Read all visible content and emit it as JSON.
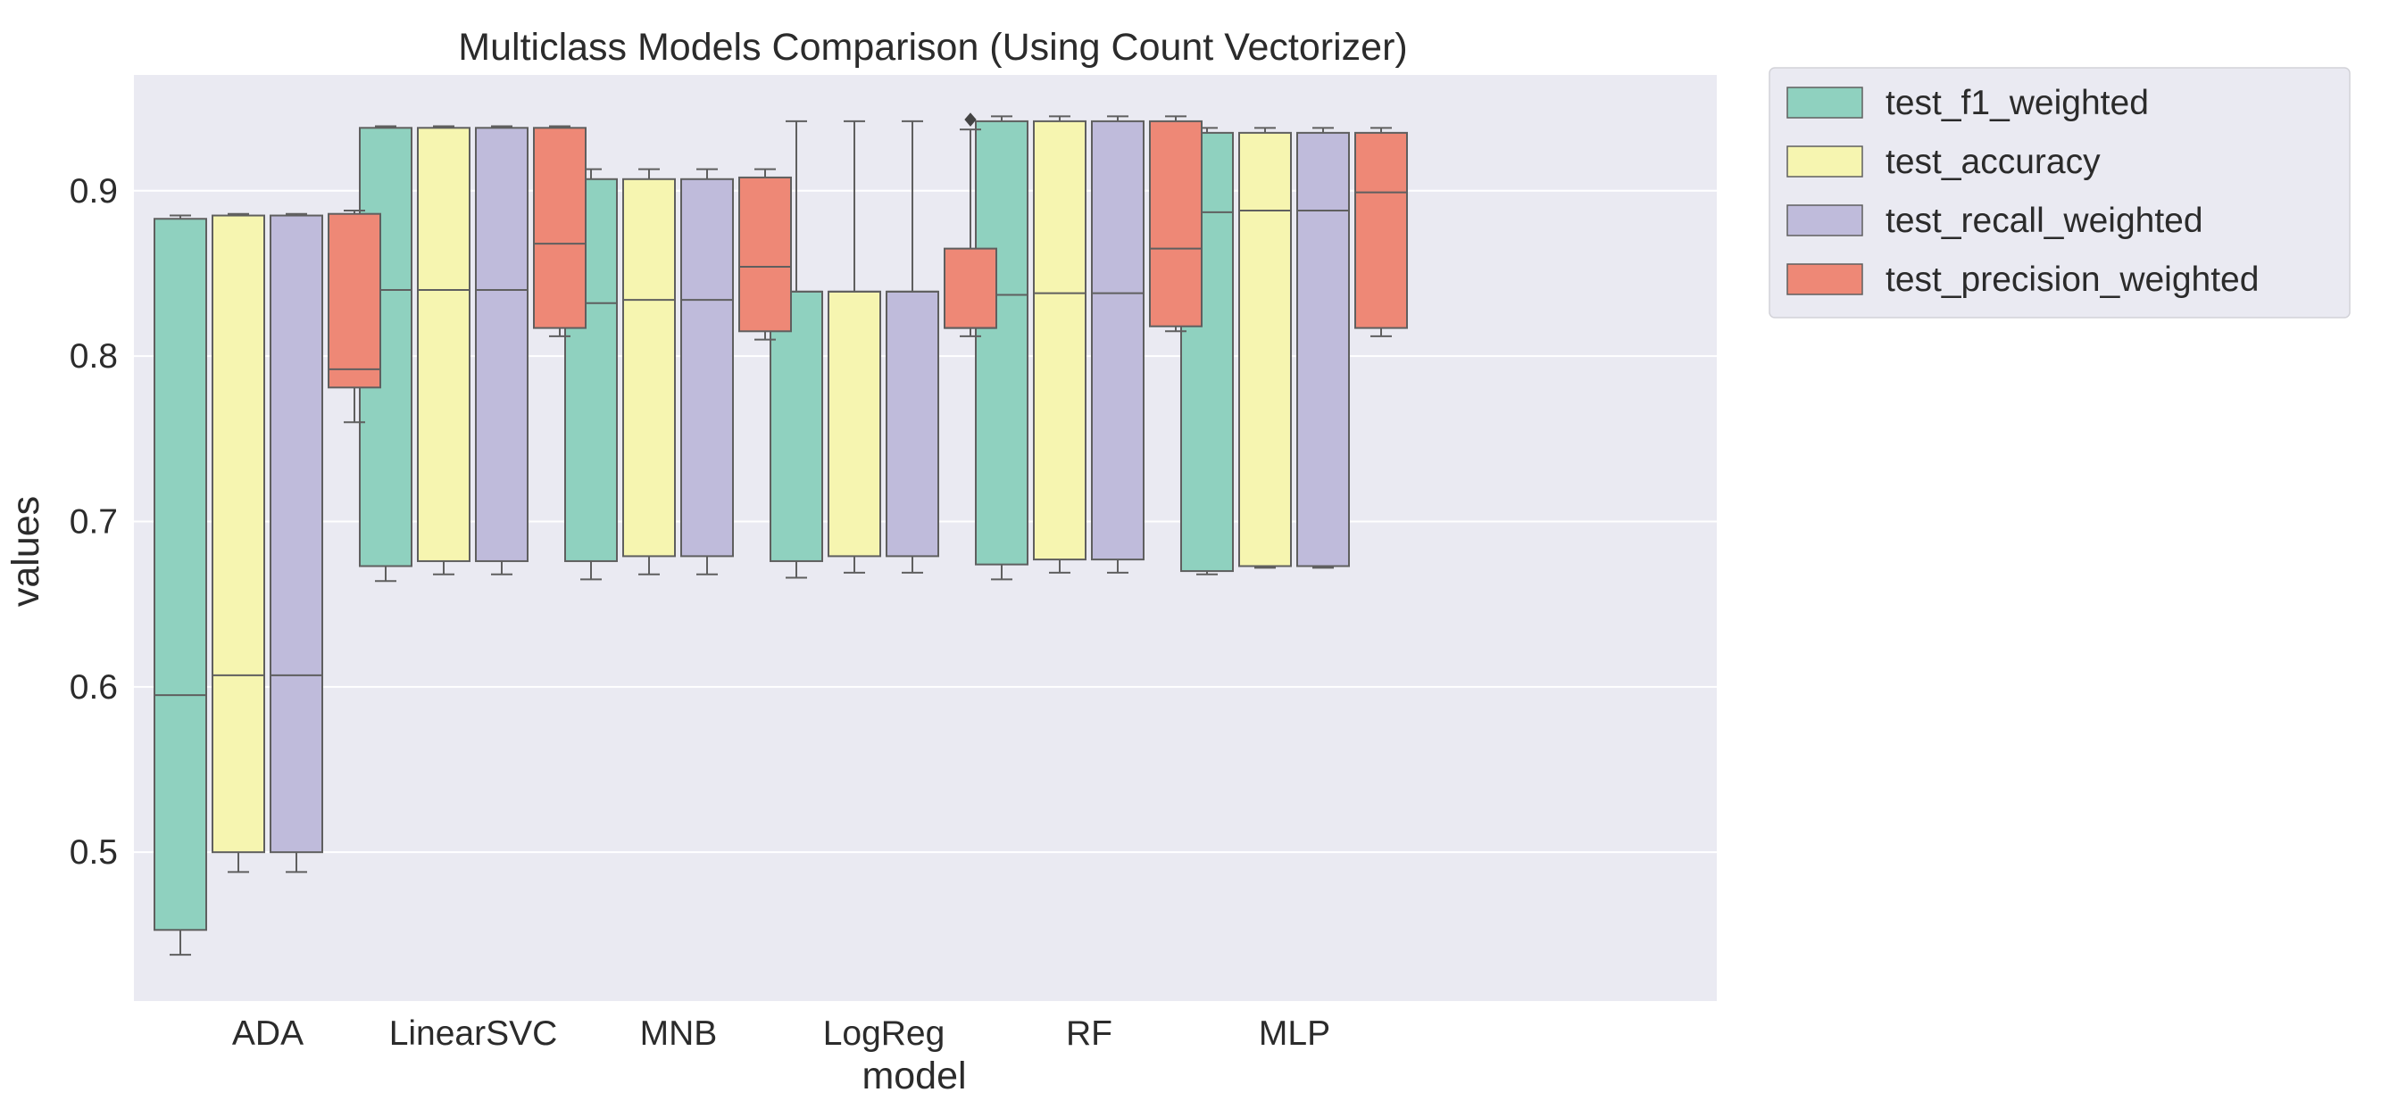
{
  "chart_data": {
    "type": "box",
    "title": "Multiclass Models Comparison (Using Count Vectorizer)",
    "xlabel": "model",
    "ylabel": "values",
    "ylim": [
      0.41,
      0.97
    ],
    "yticks": [
      0.5,
      0.6,
      0.7,
      0.8,
      0.9
    ],
    "ytick_labels": [
      "0.5",
      "0.6",
      "0.7",
      "0.8",
      "0.9"
    ],
    "grid": true,
    "legend_position": "outside-top-right",
    "categories": [
      "ADA",
      "LinearSVC",
      "MNB",
      "LogReg",
      "RF",
      "MLP"
    ],
    "series": [
      {
        "name": "test_f1_weighted",
        "color": "#8fd1bf",
        "boxes": [
          {
            "whislo": 0.438,
            "q1": 0.453,
            "med": 0.595,
            "q3": 0.883,
            "whishi": 0.885,
            "fliers": []
          },
          {
            "whislo": 0.664,
            "q1": 0.673,
            "med": 0.84,
            "q3": 0.938,
            "whishi": 0.939,
            "fliers": []
          },
          {
            "whislo": 0.665,
            "q1": 0.676,
            "med": 0.832,
            "q3": 0.907,
            "whishi": 0.913,
            "fliers": []
          },
          {
            "whislo": 0.666,
            "q1": 0.676,
            "med": 0.839,
            "q3": 0.839,
            "whishi": 0.942,
            "fliers": []
          },
          {
            "whislo": 0.665,
            "q1": 0.674,
            "med": 0.837,
            "q3": 0.942,
            "whishi": 0.945,
            "fliers": []
          },
          {
            "whislo": 0.668,
            "q1": 0.67,
            "med": 0.887,
            "q3": 0.935,
            "whishi": 0.938,
            "fliers": []
          }
        ]
      },
      {
        "name": "test_accuracy",
        "color": "#f6f5b0",
        "boxes": [
          {
            "whislo": 0.488,
            "q1": 0.5,
            "med": 0.607,
            "q3": 0.885,
            "whishi": 0.886,
            "fliers": []
          },
          {
            "whislo": 0.668,
            "q1": 0.676,
            "med": 0.84,
            "q3": 0.938,
            "whishi": 0.939,
            "fliers": []
          },
          {
            "whislo": 0.668,
            "q1": 0.679,
            "med": 0.834,
            "q3": 0.907,
            "whishi": 0.913,
            "fliers": []
          },
          {
            "whislo": 0.669,
            "q1": 0.679,
            "med": 0.839,
            "q3": 0.839,
            "whishi": 0.942,
            "fliers": []
          },
          {
            "whislo": 0.669,
            "q1": 0.677,
            "med": 0.838,
            "q3": 0.942,
            "whishi": 0.945,
            "fliers": []
          },
          {
            "whislo": 0.672,
            "q1": 0.673,
            "med": 0.888,
            "q3": 0.935,
            "whishi": 0.938,
            "fliers": []
          }
        ]
      },
      {
        "name": "test_recall_weighted",
        "color": "#bfbbdb",
        "boxes": [
          {
            "whislo": 0.488,
            "q1": 0.5,
            "med": 0.607,
            "q3": 0.885,
            "whishi": 0.886,
            "fliers": []
          },
          {
            "whislo": 0.668,
            "q1": 0.676,
            "med": 0.84,
            "q3": 0.938,
            "whishi": 0.939,
            "fliers": []
          },
          {
            "whislo": 0.668,
            "q1": 0.679,
            "med": 0.834,
            "q3": 0.907,
            "whishi": 0.913,
            "fliers": []
          },
          {
            "whislo": 0.669,
            "q1": 0.679,
            "med": 0.839,
            "q3": 0.839,
            "whishi": 0.942,
            "fliers": []
          },
          {
            "whislo": 0.669,
            "q1": 0.677,
            "med": 0.838,
            "q3": 0.942,
            "whishi": 0.945,
            "fliers": []
          },
          {
            "whislo": 0.672,
            "q1": 0.673,
            "med": 0.888,
            "q3": 0.935,
            "whishi": 0.938,
            "fliers": []
          }
        ]
      },
      {
        "name": "test_precision_weighted",
        "color": "#ee8876",
        "boxes": [
          {
            "whislo": 0.76,
            "q1": 0.781,
            "med": 0.792,
            "q3": 0.886,
            "whishi": 0.888,
            "fliers": []
          },
          {
            "whislo": 0.812,
            "q1": 0.817,
            "med": 0.868,
            "q3": 0.938,
            "whishi": 0.939,
            "fliers": []
          },
          {
            "whislo": 0.81,
            "q1": 0.815,
            "med": 0.854,
            "q3": 0.908,
            "whishi": 0.913,
            "fliers": []
          },
          {
            "whislo": 0.812,
            "q1": 0.817,
            "med": 0.817,
            "q3": 0.865,
            "whishi": 0.937,
            "fliers": [
              0.943
            ]
          },
          {
            "whislo": 0.815,
            "q1": 0.818,
            "med": 0.865,
            "q3": 0.942,
            "whishi": 0.945,
            "fliers": []
          },
          {
            "whislo": 0.812,
            "q1": 0.817,
            "med": 0.899,
            "q3": 0.935,
            "whishi": 0.938,
            "fliers": []
          }
        ]
      }
    ]
  },
  "colors": {
    "plot_background": "#eaeaf2",
    "grid": "#ffffff",
    "box_edge": "#5f5f5f",
    "text": "#2b2b2b"
  }
}
